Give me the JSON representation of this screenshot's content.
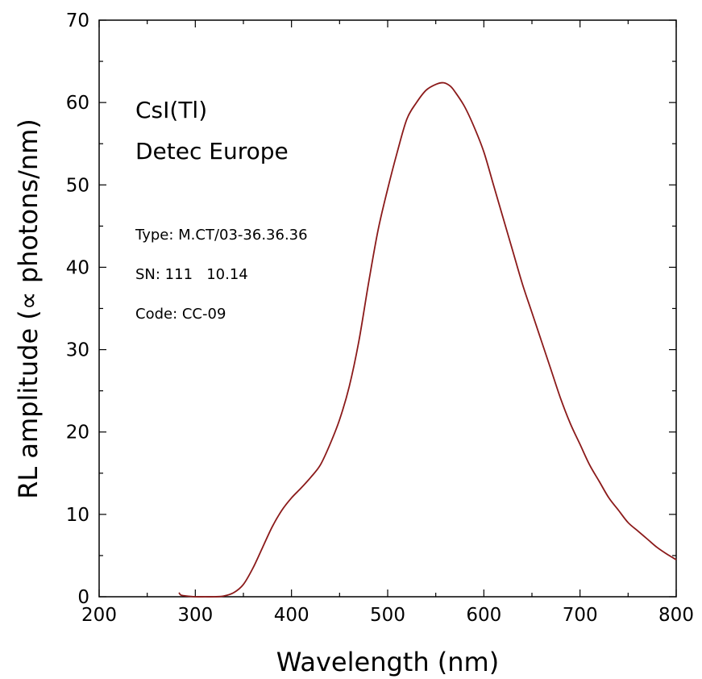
{
  "chart_data": {
    "type": "line",
    "title": "",
    "xlabel": "Wavelength (nm)",
    "ylabel": "RL amplitude (∝ photons/nm)",
    "xlim": [
      200,
      800
    ],
    "ylim": [
      0,
      70
    ],
    "x_ticks": [
      "200",
      "300",
      "400",
      "500",
      "600",
      "700",
      "800"
    ],
    "y_ticks": [
      "0",
      "10",
      "20",
      "30",
      "40",
      "50",
      "60",
      "70"
    ],
    "grid": false,
    "legend": "none",
    "annotations": {
      "line1": "CsI(Tl)",
      "line2": "Detec Europe",
      "line3": "Type: M.CT/03-36.36.36",
      "line4": "SN: 111   10.14",
      "line5": "Code: CC-09"
    },
    "series": [
      {
        "color": "#8B1A1A",
        "x": [
          283,
          285,
          290,
          300,
          310,
          320,
          330,
          340,
          350,
          360,
          370,
          380,
          390,
          400,
          410,
          420,
          430,
          440,
          450,
          460,
          470,
          480,
          490,
          500,
          510,
          520,
          530,
          540,
          550,
          558,
          565,
          570,
          580,
          590,
          600,
          610,
          620,
          630,
          640,
          650,
          660,
          670,
          680,
          690,
          700,
          710,
          720,
          730,
          740,
          750,
          760,
          770,
          780,
          790,
          800
        ],
        "y": [
          0.5,
          0.2,
          0.1,
          0.0,
          0.0,
          0.0,
          0.1,
          0.5,
          1.5,
          3.5,
          6.0,
          8.5,
          10.5,
          12.0,
          13.2,
          14.5,
          16.0,
          18.5,
          21.5,
          25.5,
          31.0,
          38.0,
          44.5,
          49.5,
          54.0,
          58.0,
          60.0,
          61.5,
          62.2,
          62.4,
          62.0,
          61.3,
          59.5,
          57.0,
          54.0,
          50.0,
          46.0,
          42.0,
          38.0,
          34.5,
          31.0,
          27.5,
          24.0,
          21.0,
          18.5,
          16.0,
          14.0,
          12.0,
          10.5,
          9.0,
          8.0,
          7.0,
          6.0,
          5.2,
          4.5
        ]
      }
    ]
  }
}
